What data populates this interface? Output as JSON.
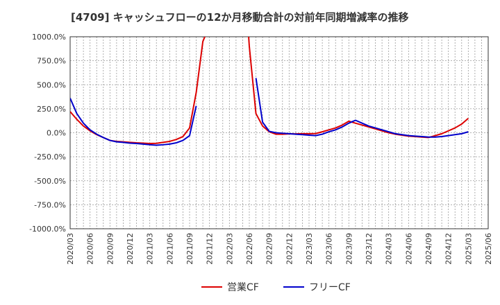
{
  "chart_data": {
    "type": "line",
    "title": "[4709]  キャッシュフローの12か月移動合計の対前年同期増減率の推移",
    "xlabel": "",
    "ylabel": "",
    "ylim": [
      -1000,
      1000
    ],
    "y_ticks": [
      1000,
      750,
      500,
      250,
      0,
      -250,
      -500,
      -750,
      -1000
    ],
    "y_tick_labels": [
      "1000.0%",
      "750.0%",
      "500.0%",
      "250.0%",
      "0.0%",
      "-250.0%",
      "-500.0%",
      "-750.0%",
      "-1000.0%"
    ],
    "x_tick_labels": [
      "2020/03",
      "2020/06",
      "2020/09",
      "2020/12",
      "2021/03",
      "2021/06",
      "2021/09",
      "2021/12",
      "2022/03",
      "2022/06",
      "2022/09",
      "2022/12",
      "2023/03",
      "2023/06",
      "2023/09",
      "2023/12",
      "2024/03",
      "2024/06",
      "2024/09",
      "2024/12",
      "2025/03",
      "2025/06"
    ],
    "legend_position": "bottom-center",
    "grid": true,
    "series": [
      {
        "name": "営業CF",
        "color": "#dd0000",
        "points": [
          [
            0,
            220
          ],
          [
            1,
            140
          ],
          [
            2,
            70
          ],
          [
            3,
            20
          ],
          [
            4,
            -20
          ],
          [
            5,
            -50
          ],
          [
            6,
            -80
          ],
          [
            7,
            -90
          ],
          [
            8,
            -95
          ],
          [
            9,
            -100
          ],
          [
            10,
            -105
          ],
          [
            11,
            -108
          ],
          [
            12,
            -112
          ],
          [
            13,
            -110
          ],
          [
            14,
            -100
          ],
          [
            15,
            -90
          ],
          [
            16,
            -70
          ],
          [
            17,
            -40
          ],
          [
            18,
            50
          ],
          [
            19,
            420
          ],
          [
            20,
            950
          ],
          [
            20.3,
            1000
          ],
          null,
          [
            26.9,
            1000
          ],
          [
            27,
            900
          ],
          [
            28,
            200
          ],
          [
            29,
            70
          ],
          [
            30,
            10
          ],
          [
            31,
            -15
          ],
          [
            32,
            -15
          ],
          [
            33,
            -12
          ],
          [
            34,
            -12
          ],
          [
            35,
            -10
          ],
          [
            36,
            -10
          ],
          [
            37,
            -8
          ],
          [
            38,
            10
          ],
          [
            39,
            30
          ],
          [
            40,
            50
          ],
          [
            41,
            80
          ],
          [
            42,
            120
          ],
          [
            43,
            100
          ],
          [
            44,
            80
          ],
          [
            45,
            60
          ],
          [
            46,
            40
          ],
          [
            47,
            20
          ],
          [
            48,
            0
          ],
          [
            49,
            -15
          ],
          [
            50,
            -25
          ],
          [
            51,
            -35
          ],
          [
            52,
            -40
          ],
          [
            53,
            -45
          ],
          [
            54,
            -50
          ],
          [
            55,
            -30
          ],
          [
            56,
            -10
          ],
          [
            57,
            20
          ],
          [
            58,
            50
          ],
          [
            59,
            90
          ],
          [
            60,
            150
          ]
        ]
      },
      {
        "name": "フリーCF",
        "color": "#0000cc",
        "points": [
          [
            0,
            360
          ],
          [
            1,
            200
          ],
          [
            2,
            100
          ],
          [
            3,
            30
          ],
          [
            4,
            -15
          ],
          [
            5,
            -50
          ],
          [
            6,
            -80
          ],
          [
            7,
            -95
          ],
          [
            8,
            -100
          ],
          [
            9,
            -108
          ],
          [
            10,
            -112
          ],
          [
            11,
            -118
          ],
          [
            12,
            -125
          ],
          [
            13,
            -130
          ],
          [
            14,
            -125
          ],
          [
            15,
            -118
          ],
          [
            16,
            -105
          ],
          [
            17,
            -80
          ],
          [
            18,
            -30
          ],
          [
            19,
            280
          ],
          null,
          [
            28,
            570
          ],
          [
            29,
            110
          ],
          [
            30,
            15
          ],
          [
            31,
            0
          ],
          [
            32,
            -5
          ],
          [
            33,
            -10
          ],
          [
            34,
            -15
          ],
          [
            35,
            -20
          ],
          [
            36,
            -25
          ],
          [
            37,
            -30
          ],
          [
            38,
            -15
          ],
          [
            39,
            10
          ],
          [
            40,
            30
          ],
          [
            41,
            60
          ],
          [
            42,
            100
          ],
          [
            43,
            130
          ],
          [
            44,
            100
          ],
          [
            45,
            70
          ],
          [
            46,
            50
          ],
          [
            47,
            30
          ],
          [
            48,
            10
          ],
          [
            49,
            -10
          ],
          [
            50,
            -20
          ],
          [
            51,
            -30
          ],
          [
            52,
            -35
          ],
          [
            53,
            -40
          ],
          [
            54,
            -45
          ],
          [
            55,
            -45
          ],
          [
            56,
            -40
          ],
          [
            57,
            -30
          ],
          [
            58,
            -20
          ],
          [
            59,
            -10
          ],
          [
            60,
            10
          ]
        ]
      }
    ]
  }
}
